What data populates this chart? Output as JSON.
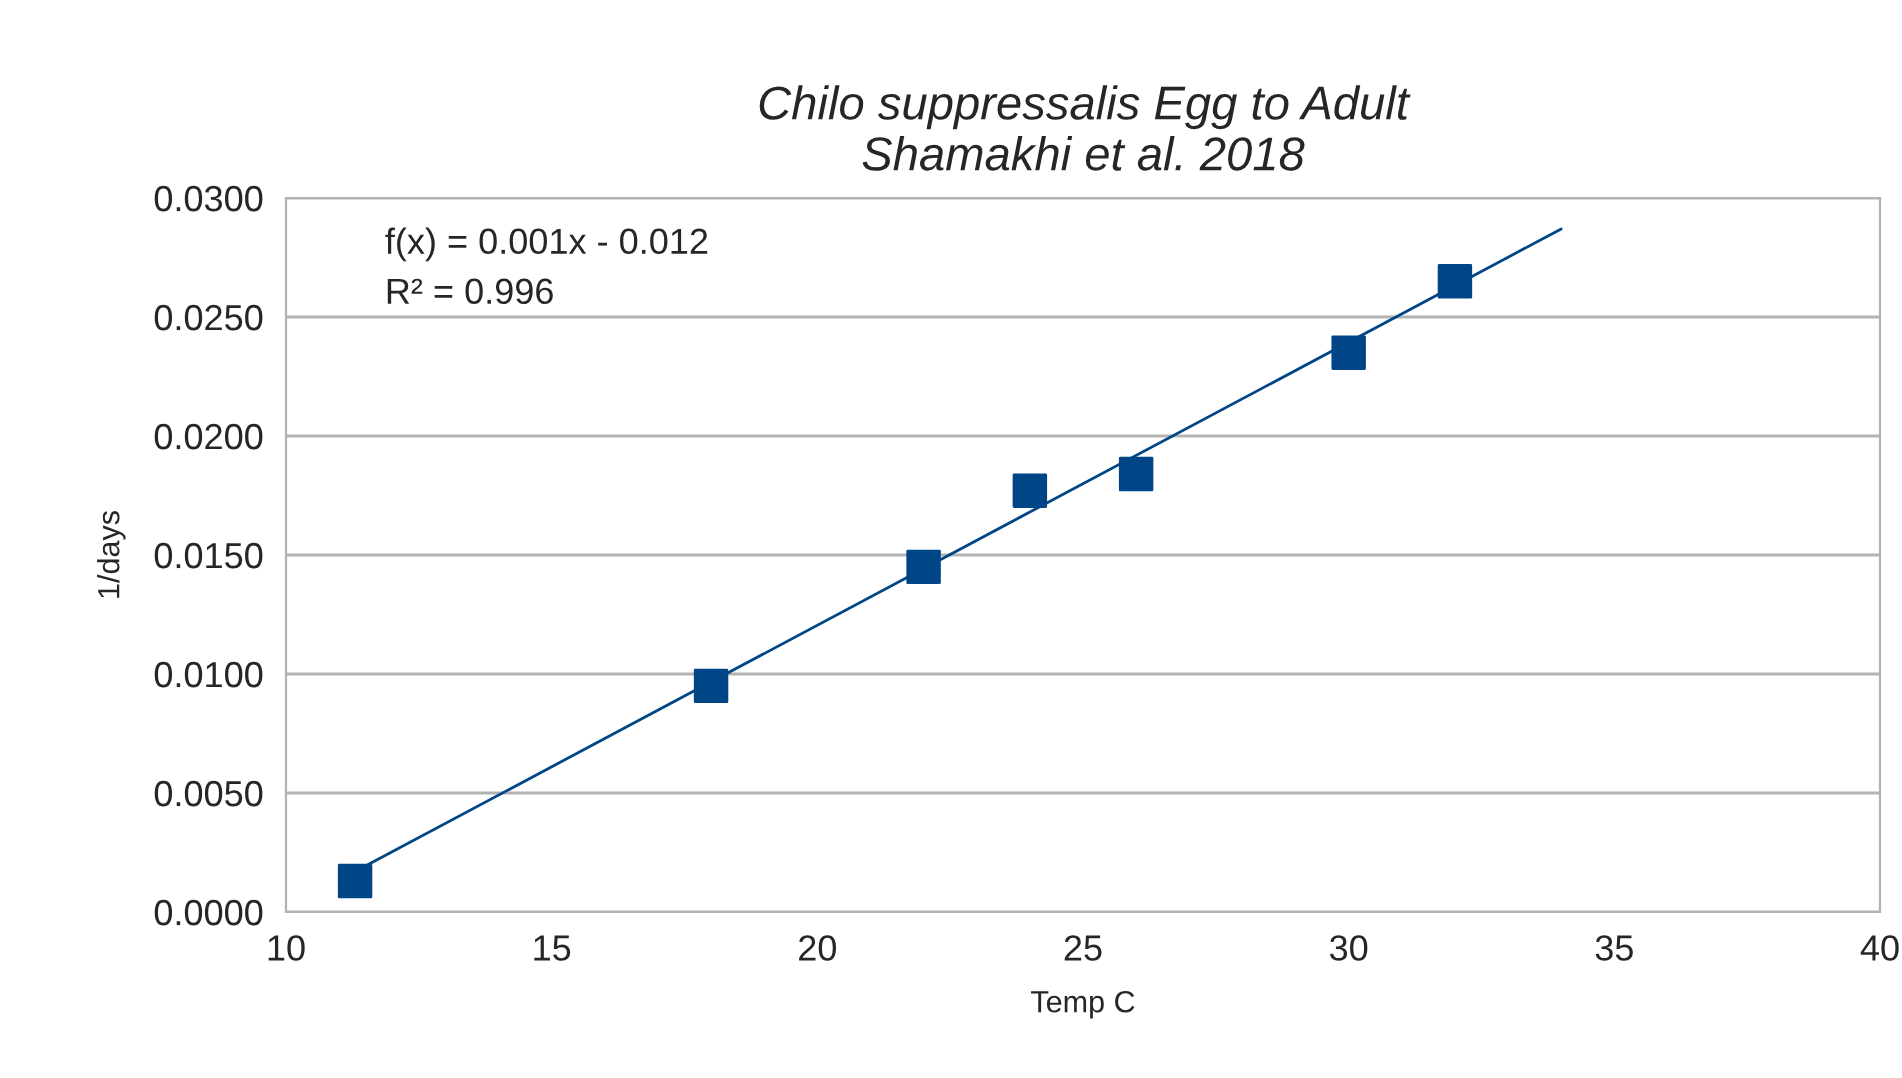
{
  "chart_data": {
    "type": "scatter",
    "title": "Chilo suppressalis Egg to Adult\nShamakhi et al. 2018",
    "xlabel": "Temp C",
    "ylabel": "1/days",
    "series": [
      {
        "color": "#004586",
        "marker": "square",
        "x": [
          11.3,
          18,
          22,
          24,
          26,
          30,
          32
        ],
        "values": [
          0.0013,
          0.0095,
          0.0145,
          0.0177,
          0.0184,
          0.0235,
          0.0265
        ]
      },
      {
        "type": "line",
        "color": "#004586",
        "marker": "none",
        "line_style": "solid",
        "x": [
          11.3,
          34
        ],
        "values": [
          0.0017,
          0.0287
        ]
      }
    ],
    "annotations": [
      "f(x) = 0.001x - 0.012",
      "R² = 0.996"
    ],
    "xlim": [
      10,
      40
    ],
    "xticks": [
      10,
      15,
      20,
      25,
      30,
      35,
      40
    ],
    "ylim": [
      0,
      0.03
    ],
    "yticks": [
      {
        "value": 0,
        "label": "0.0000"
      },
      {
        "value": 0.005,
        "label": "0.0050"
      },
      {
        "value": 0.01,
        "label": "0.0100"
      },
      {
        "value": 0.015,
        "label": "0.0150"
      },
      {
        "value": 0.02,
        "label": "0.0200"
      },
      {
        "value": 0.025,
        "label": "0.0250"
      },
      {
        "value": 0.03,
        "label": "0.0300"
      }
    ],
    "grid": "y",
    "legend": false
  }
}
